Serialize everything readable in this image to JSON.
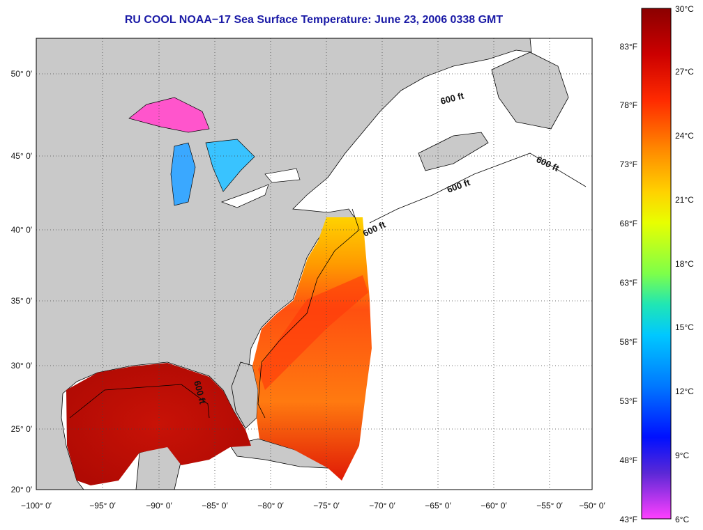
{
  "title": "RU COOL  NOAA−17  Sea Surface Temperature:  June 23, 2006 0338 GMT",
  "colors": {
    "land": "#c9c9c9",
    "no_data": "#ffffff",
    "title": "#1a1aa6",
    "gulf": "#c81206",
    "gulf_stream": "#ff5a06"
  },
  "map": {
    "lon_range": [
      -100,
      -50
    ],
    "lat_range": [
      20,
      52
    ],
    "x_ticks": [
      "−100° 0′",
      "−95° 0′",
      "−90° 0′",
      "−85° 0′",
      "−80° 0′",
      "−75° 0′",
      "−70° 0′",
      "−65° 0′",
      "−60° 0′",
      "−55° 0′",
      "−50° 0′"
    ],
    "y_ticks": [
      "20° 0′",
      "25° 0′",
      "30° 0′",
      "35° 0′",
      "40° 0′",
      "45° 0′",
      "50° 0′"
    ],
    "isobath_labels": [
      "600 ft",
      "600 ft",
      "600 ft",
      "600 ft",
      "600 ft"
    ],
    "grid": "dotted"
  },
  "colorbar": {
    "celsius_labels": [
      "30°C",
      "27°C",
      "24°C",
      "21°C",
      "18°C",
      "15°C",
      "12°C",
      "9°C",
      "6°C"
    ],
    "fahrenheit_labels": [
      "83°F",
      "78°F",
      "73°F",
      "68°F",
      "63°F",
      "58°F",
      "53°F",
      "48°F",
      "43°F"
    ],
    "colors_top_to_bottom": [
      "#8b0000",
      "#cc0000",
      "#ff2a00",
      "#ff8c00",
      "#ffd200",
      "#e8ff00",
      "#7dff4a",
      "#20e6b4",
      "#00c8ff",
      "#0078ff",
      "#0010ff",
      "#5a28d6",
      "#ff40ff"
    ]
  }
}
